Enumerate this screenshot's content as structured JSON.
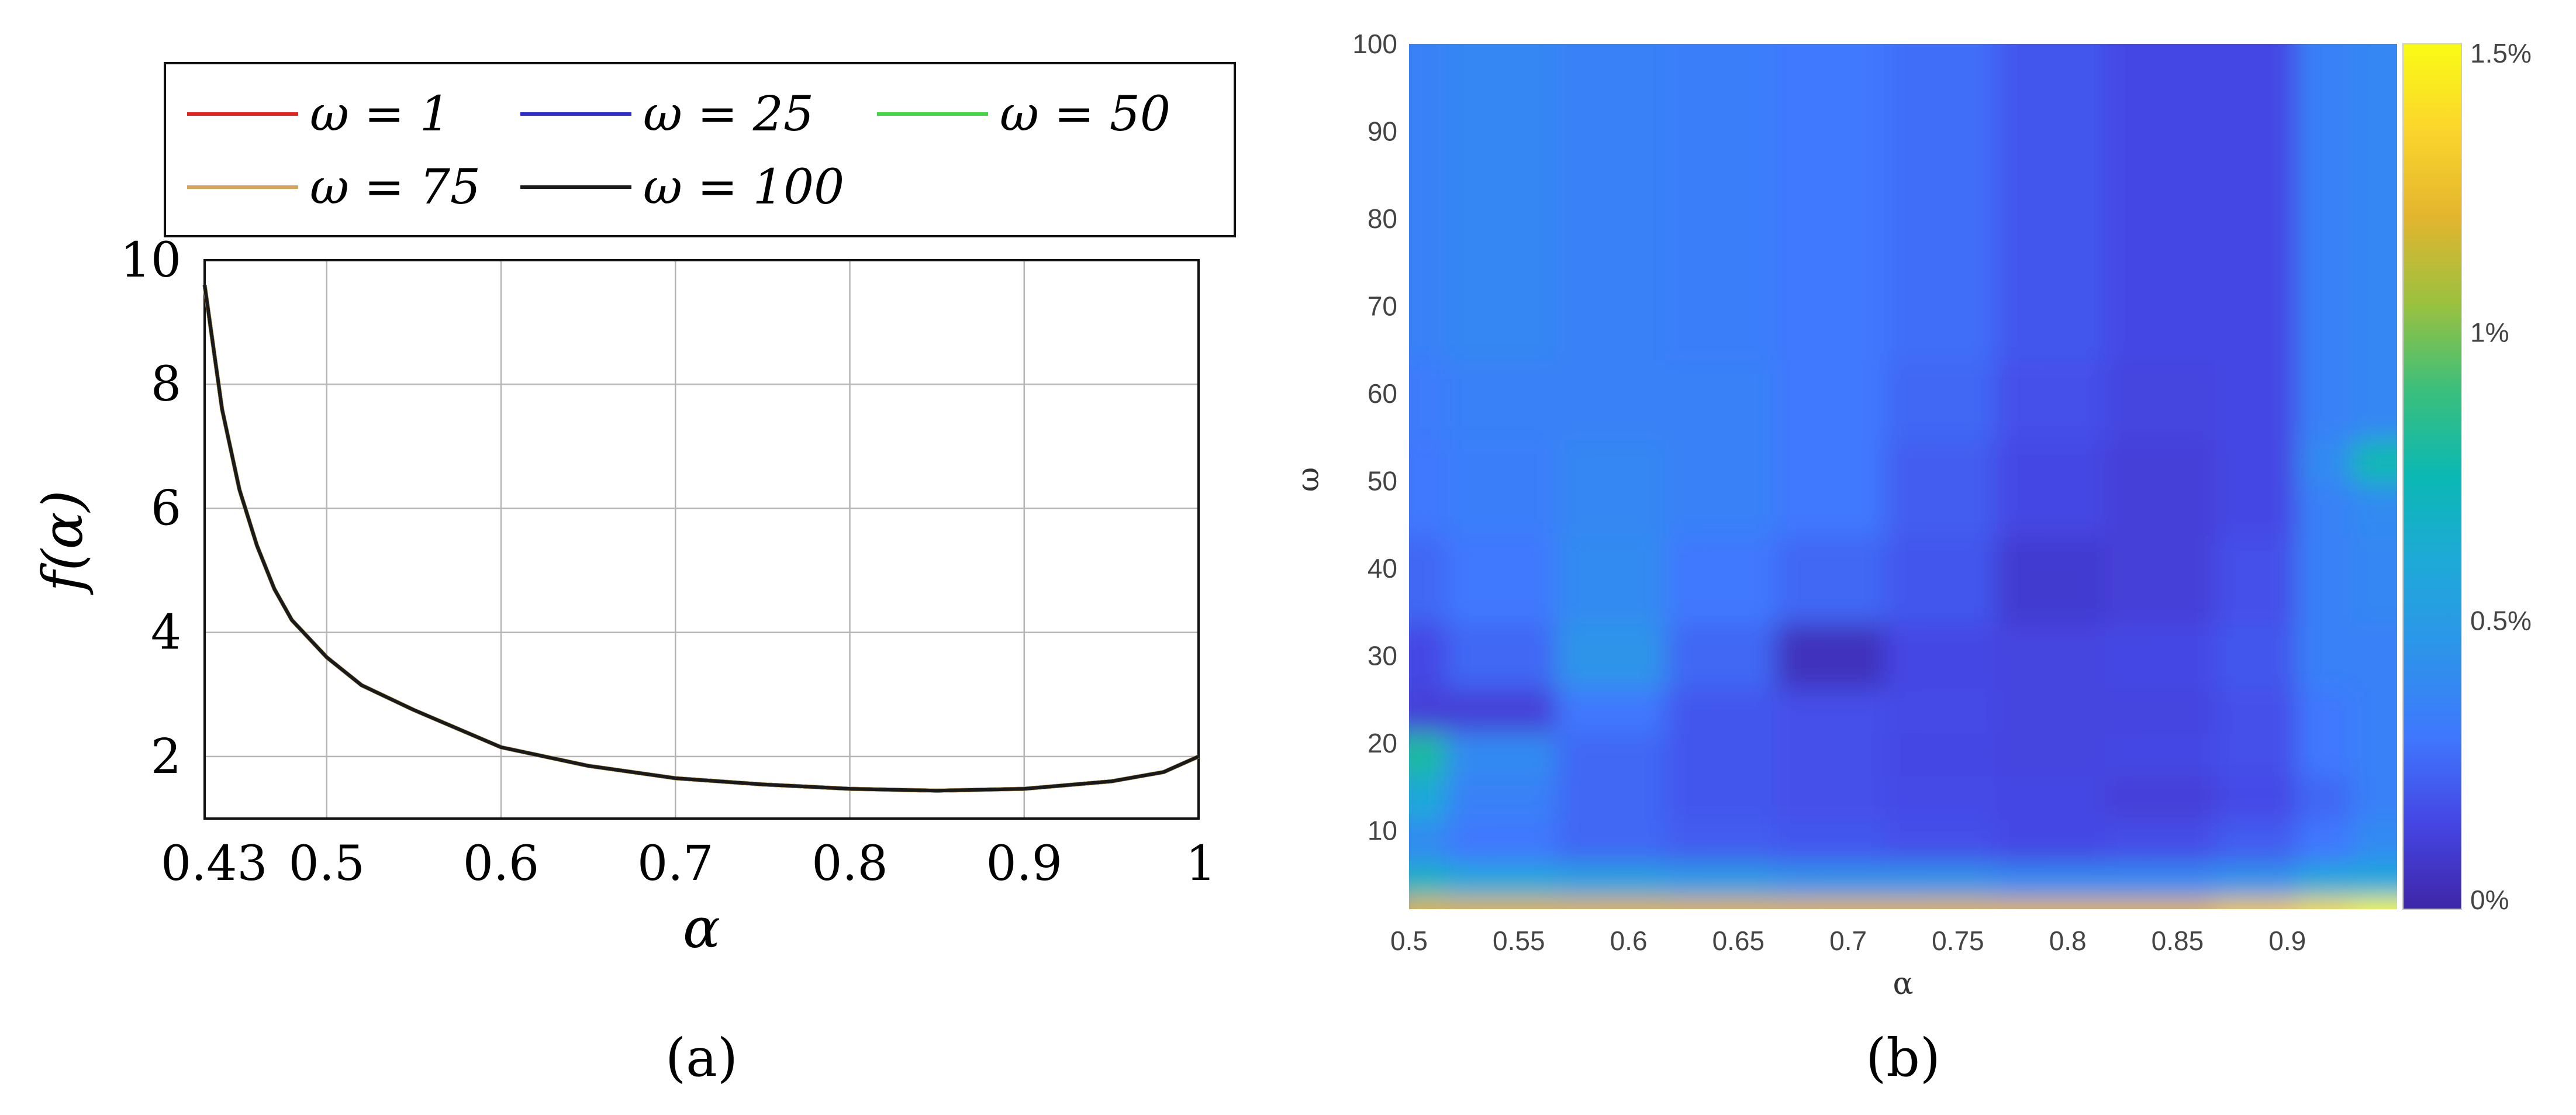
{
  "chart_data": [
    {
      "type": "line",
      "caption": "(a)",
      "xlabel": "α",
      "ylabel": "f(α)",
      "xlim": [
        0.43,
        1.0
      ],
      "ylim": [
        1.0,
        10.0
      ],
      "xticks": [
        0.43,
        0.5,
        0.6,
        0.7,
        0.8,
        0.9,
        1.0
      ],
      "xtick_labels": [
        "0.43",
        "0.5",
        "0.6",
        "0.7",
        "0.8",
        "0.9",
        "1"
      ],
      "yticks": [
        2,
        4,
        6,
        8,
        10
      ],
      "ytick_labels": [
        "2",
        "4",
        "6",
        "8",
        "10"
      ],
      "grid": true,
      "legend_position": "top",
      "x": [
        0.43,
        0.44,
        0.45,
        0.46,
        0.47,
        0.48,
        0.5,
        0.52,
        0.55,
        0.6,
        0.65,
        0.7,
        0.75,
        0.8,
        0.85,
        0.9,
        0.95,
        0.98,
        1.0
      ],
      "series": [
        {
          "name": "ω = 1",
          "color": "#e8201e",
          "values": [
            9.6,
            7.6,
            6.3,
            5.4,
            4.7,
            4.2,
            3.6,
            3.15,
            2.75,
            2.15,
            1.85,
            1.65,
            1.55,
            1.48,
            1.45,
            1.48,
            1.6,
            1.75,
            2.0
          ]
        },
        {
          "name": "ω = 25",
          "color": "#2c2ccf",
          "values": [
            9.6,
            7.6,
            6.3,
            5.4,
            4.7,
            4.2,
            3.6,
            3.15,
            2.75,
            2.15,
            1.85,
            1.65,
            1.55,
            1.48,
            1.45,
            1.48,
            1.6,
            1.75,
            2.0
          ]
        },
        {
          "name": "ω = 50",
          "color": "#3fd83f",
          "values": [
            9.6,
            7.6,
            6.3,
            5.4,
            4.7,
            4.2,
            3.6,
            3.15,
            2.75,
            2.15,
            1.85,
            1.65,
            1.55,
            1.48,
            1.45,
            1.48,
            1.6,
            1.75,
            2.0
          ]
        },
        {
          "name": "ω = 75",
          "color": "#d9a35a",
          "values": [
            9.6,
            7.6,
            6.3,
            5.4,
            4.7,
            4.2,
            3.6,
            3.15,
            2.75,
            2.15,
            1.85,
            1.65,
            1.55,
            1.48,
            1.45,
            1.48,
            1.6,
            1.75,
            2.0
          ]
        },
        {
          "name": "ω = 100",
          "color": "#1a1a1a",
          "values": [
            9.6,
            7.6,
            6.3,
            5.4,
            4.7,
            4.2,
            3.6,
            3.15,
            2.75,
            2.15,
            1.85,
            1.65,
            1.55,
            1.48,
            1.45,
            1.48,
            1.6,
            1.75,
            2.0
          ]
        }
      ]
    },
    {
      "type": "heatmap",
      "caption": "(b)",
      "xlabel": "α",
      "ylabel": "ω",
      "xlim": [
        0.5,
        0.95
      ],
      "ylim": [
        1,
        100
      ],
      "xticks": [
        0.5,
        0.55,
        0.6,
        0.65,
        0.7,
        0.75,
        0.8,
        0.85,
        0.9
      ],
      "xtick_labels": [
        "0.5",
        "0.55",
        "0.6",
        "0.65",
        "0.7",
        "0.75",
        "0.8",
        "0.85",
        "0.9"
      ],
      "yticks": [
        10,
        20,
        30,
        40,
        50,
        60,
        70,
        80,
        90,
        100
      ],
      "ytick_labels": [
        "10",
        "20",
        "30",
        "40",
        "50",
        "60",
        "70",
        "80",
        "90",
        "100"
      ],
      "colorbar": {
        "range": [
          0,
          1.5
        ],
        "unit": "%",
        "ticks": [
          0,
          0.5,
          1.0,
          1.5
        ],
        "tick_labels": [
          "0%",
          "0.5%",
          "1%",
          "1.5%"
        ],
        "colormap": [
          "#3e26a8",
          "#4546e4",
          "#3f78fe",
          "#2d94ea",
          "#1fa9d8",
          "#0bb8b4",
          "#3bbf7c",
          "#9bc13e",
          "#e3b52e",
          "#fbd52c",
          "#f9fb15"
        ]
      },
      "alpha_values": [
        0.5,
        0.55,
        0.6,
        0.65,
        0.7,
        0.75,
        0.8,
        0.85,
        0.9,
        0.925,
        0.95
      ],
      "omega_values": [
        2,
        5,
        10,
        15,
        20,
        25,
        30,
        40,
        50,
        52,
        60,
        70,
        80,
        90,
        100
      ],
      "values": [
        [
          1.2,
          1.2,
          1.2,
          1.2,
          1.2,
          1.2,
          1.2,
          1.2,
          1.3,
          1.4,
          1.5
        ],
        [
          0.7,
          0.6,
          0.55,
          0.5,
          0.45,
          0.45,
          0.4,
          0.4,
          0.45,
          0.6,
          0.6
        ],
        [
          0.4,
          0.3,
          0.25,
          0.22,
          0.2,
          0.18,
          0.15,
          0.17,
          0.22,
          0.3,
          0.4
        ],
        [
          0.6,
          0.35,
          0.25,
          0.2,
          0.18,
          0.16,
          0.15,
          0.12,
          0.16,
          0.25,
          0.35
        ],
        [
          0.8,
          0.4,
          0.25,
          0.2,
          0.18,
          0.15,
          0.14,
          0.15,
          0.18,
          0.3,
          0.35
        ],
        [
          0.12,
          0.12,
          0.3,
          0.2,
          0.18,
          0.16,
          0.14,
          0.14,
          0.18,
          0.3,
          0.35
        ],
        [
          0.15,
          0.25,
          0.45,
          0.25,
          0.05,
          0.15,
          0.14,
          0.15,
          0.2,
          0.35,
          0.35
        ],
        [
          0.25,
          0.3,
          0.4,
          0.3,
          0.25,
          0.2,
          0.1,
          0.12,
          0.18,
          0.35,
          0.38
        ],
        [
          0.3,
          0.33,
          0.38,
          0.35,
          0.3,
          0.22,
          0.15,
          0.12,
          0.15,
          0.35,
          0.4
        ],
        [
          0.3,
          0.33,
          0.38,
          0.35,
          0.3,
          0.22,
          0.15,
          0.12,
          0.15,
          0.4,
          0.75
        ],
        [
          0.32,
          0.35,
          0.35,
          0.35,
          0.3,
          0.25,
          0.18,
          0.14,
          0.15,
          0.35,
          0.38
        ],
        [
          0.35,
          0.38,
          0.35,
          0.33,
          0.3,
          0.27,
          0.2,
          0.15,
          0.15,
          0.35,
          0.38
        ],
        [
          0.35,
          0.38,
          0.35,
          0.33,
          0.3,
          0.27,
          0.2,
          0.15,
          0.15,
          0.35,
          0.38
        ],
        [
          0.35,
          0.38,
          0.35,
          0.33,
          0.3,
          0.27,
          0.2,
          0.15,
          0.15,
          0.35,
          0.38
        ],
        [
          0.35,
          0.38,
          0.35,
          0.33,
          0.3,
          0.27,
          0.2,
          0.15,
          0.15,
          0.35,
          0.38
        ]
      ]
    }
  ]
}
